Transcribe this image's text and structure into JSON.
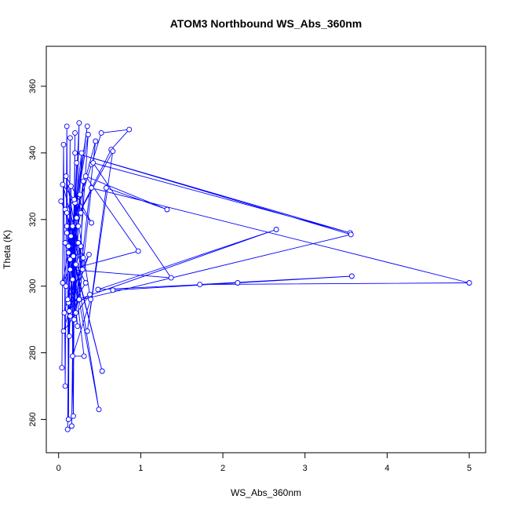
{
  "chart_data": {
    "type": "line",
    "title": "ATOM3 Northbound WS_Abs_360nm",
    "xlabel": "WS_Abs_360nm",
    "ylabel": "Theta (K)",
    "xlim": [
      -0.15,
      5.2
    ],
    "ylim": [
      250,
      372
    ],
    "xticks": [
      0,
      1,
      2,
      3,
      4,
      5
    ],
    "yticks": [
      260,
      280,
      300,
      320,
      340,
      360
    ],
    "xtick_labels": [
      "0",
      "1",
      "2",
      "3",
      "4",
      "5"
    ],
    "ytick_labels": [
      "260",
      "280",
      "300",
      "320",
      "340",
      "360"
    ],
    "grid": false,
    "color": "#0000ff",
    "marker": "open-circle",
    "series": [
      {
        "values": [
          [
            0.04,
            275.5
          ],
          [
            0.06,
            342.5
          ],
          [
            0.08,
            270.0
          ],
          [
            0.1,
            348.0
          ],
          [
            0.12,
            260.0
          ],
          [
            0.14,
            344.5
          ],
          [
            0.11,
            257.0
          ],
          [
            0.15,
            330.0
          ],
          [
            0.18,
            261.0
          ],
          [
            0.2,
            346.0
          ],
          [
            0.16,
            258.0
          ],
          [
            0.22,
            337.0
          ],
          [
            0.13,
            285.0
          ],
          [
            0.25,
            349.0
          ],
          [
            0.19,
            290.0
          ],
          [
            0.28,
            340.0
          ],
          [
            0.09,
            300.0
          ],
          [
            0.35,
            348.0
          ],
          [
            0.12,
            310.0
          ],
          [
            0.36,
            345.5
          ],
          [
            0.21,
            292.0
          ],
          [
            0.45,
            343.5
          ],
          [
            0.17,
            318.0
          ],
          [
            0.4,
            336.5
          ],
          [
            0.52,
            346.0
          ],
          [
            0.86,
            347.0
          ],
          [
            0.64,
            341.0
          ],
          [
            0.22,
            320.5
          ],
          [
            0.66,
            340.5
          ],
          [
            0.35,
            286.5
          ],
          [
            0.58,
            329.5
          ],
          [
            1.32,
            323.0
          ],
          [
            0.33,
            333.0
          ],
          [
            0.97,
            310.5
          ],
          [
            0.14,
            305.0
          ],
          [
            1.37,
            302.5
          ],
          [
            0.42,
            337.0
          ],
          [
            3.55,
            316.0
          ],
          [
            0.2,
            340.0
          ],
          [
            3.56,
            315.5
          ],
          [
            0.12,
            295.0
          ],
          [
            2.65,
            317.0
          ],
          [
            0.48,
            299.0
          ],
          [
            2.18,
            301.0
          ],
          [
            0.66,
            298.8
          ],
          [
            3.57,
            303.0
          ],
          [
            1.72,
            300.5
          ],
          [
            5.0,
            301.0
          ],
          [
            0.4,
            329.5
          ],
          [
            0.25,
            296.0
          ],
          [
            0.3,
            331.5
          ],
          [
            0.18,
            309.0
          ],
          [
            0.53,
            274.5
          ],
          [
            0.1,
            316.0
          ],
          [
            0.49,
            263.0
          ],
          [
            0.15,
            315.0
          ],
          [
            0.05,
            301.0
          ],
          [
            0.27,
            312.0
          ],
          [
            0.07,
            292.0
          ],
          [
            0.38,
            297.5
          ],
          [
            0.06,
            286.5
          ],
          [
            0.3,
            308.5
          ],
          [
            0.03,
            325.5
          ],
          [
            0.24,
            313.0
          ],
          [
            0.05,
            330.5
          ],
          [
            0.4,
            319.0
          ],
          [
            0.09,
            333.0
          ],
          [
            0.29,
            305.0
          ],
          [
            0.08,
            323.0
          ],
          [
            0.26,
            327.5
          ],
          [
            0.11,
            296.0
          ],
          [
            0.37,
            309.5
          ],
          [
            0.13,
            292.5
          ],
          [
            0.33,
            301.0
          ],
          [
            0.08,
            313.0
          ],
          [
            0.23,
            288.0
          ],
          [
            0.1,
            322.0
          ],
          [
            0.31,
            279.0
          ],
          [
            0.17,
            279.0
          ],
          [
            0.39,
            296.0
          ],
          [
            0.2,
            325.0
          ],
          [
            0.14,
            308.0
          ],
          [
            0.27,
            322.0
          ],
          [
            0.1,
            318.0
          ],
          [
            0.21,
            306.5
          ],
          [
            0.12,
            312.0
          ],
          [
            0.17,
            302.0
          ],
          [
            0.19,
            326.0
          ],
          [
            0.14,
            291.0
          ],
          [
            0.24,
            318.0
          ]
        ]
      }
    ]
  }
}
